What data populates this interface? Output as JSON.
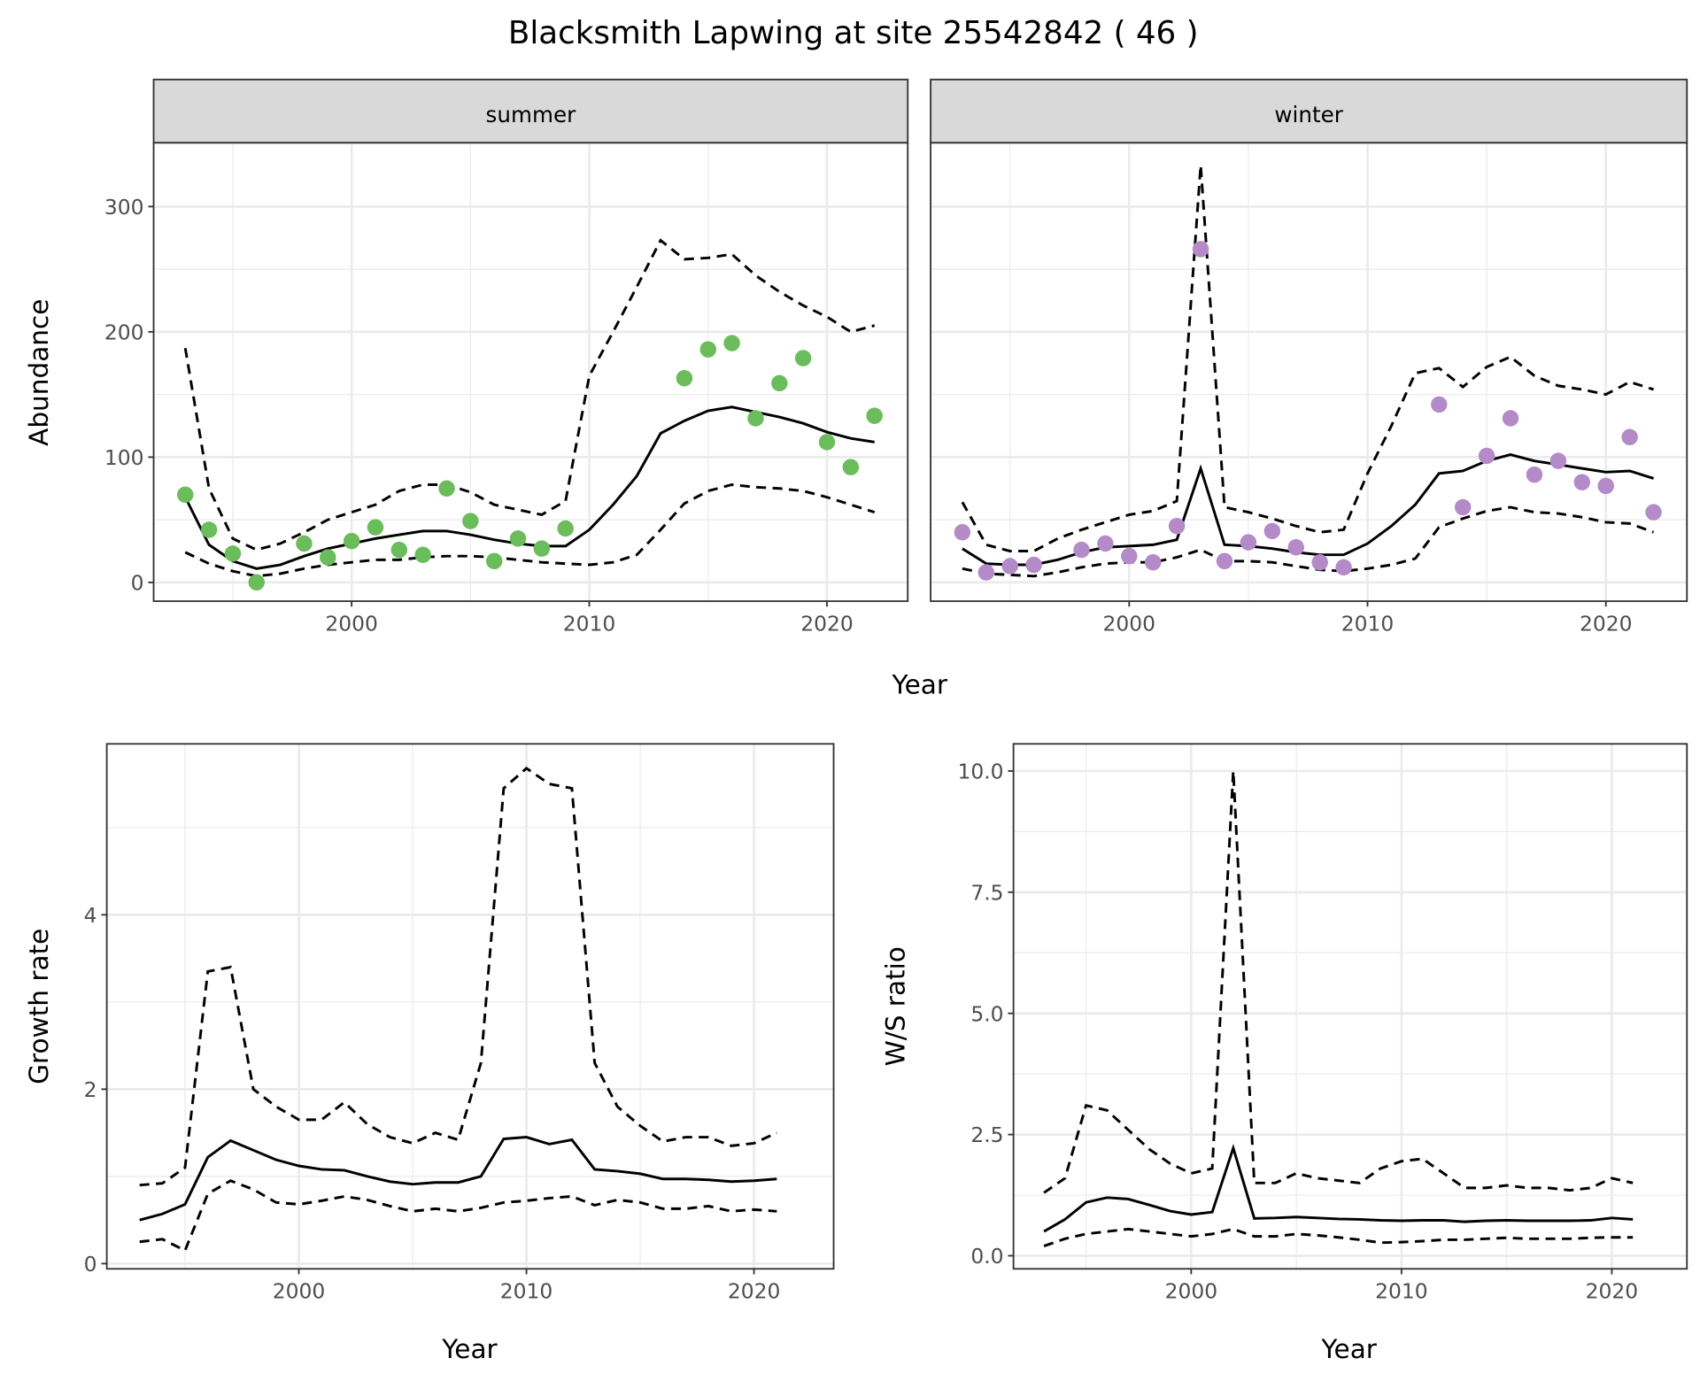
{
  "title": "Blacksmith Lapwing at site 25542842 ( 46 )",
  "colors": {
    "summer_points": "#6abd5a",
    "winter_points": "#b48ac8",
    "line": "#000000",
    "strip_bg": "#d9d9d9",
    "grid": "#ebebeb"
  },
  "chart_data": [
    {
      "type": "line",
      "id": "abundance",
      "facets": [
        "summer",
        "winter"
      ],
      "xlabel": "Year",
      "ylabel": "Abundance",
      "xlim": [
        1991.67,
        2023.4
      ],
      "ylim": [
        -15,
        351
      ],
      "xticks": [
        2000,
        2010,
        2020
      ],
      "xtick_labels": [
        "2000",
        "2010",
        "2020"
      ],
      "yticks": [
        0,
        100,
        200,
        300
      ],
      "ytick_labels": [
        "0",
        "100",
        "200",
        "300"
      ],
      "x": [
        1993,
        1994,
        1995,
        1996,
        1997,
        1998,
        1999,
        2000,
        2001,
        2002,
        2003,
        2004,
        2005,
        2006,
        2007,
        2008,
        2009,
        2010,
        2011,
        2012,
        2013,
        2014,
        2015,
        2016,
        2017,
        2018,
        2019,
        2020,
        2021,
        2022
      ],
      "summer": {
        "mean": [
          68,
          30,
          17,
          11,
          14,
          21,
          27,
          31,
          35,
          38,
          41,
          41,
          38,
          34,
          31,
          29,
          29,
          42,
          62,
          85,
          119,
          129,
          137,
          140,
          136,
          132,
          127,
          120,
          115,
          112
        ],
        "upper": [
          187,
          75,
          35,
          26,
          31,
          40,
          50,
          56,
          62,
          73,
          78,
          78,
          72,
          62,
          58,
          54,
          65,
          165,
          200,
          236,
          273,
          258,
          259,
          262,
          245,
          232,
          221,
          212,
          200,
          205
        ],
        "lower": [
          24,
          15,
          9,
          5,
          7,
          11,
          14,
          16,
          18,
          18,
          20,
          21,
          21,
          20,
          18,
          16,
          15,
          14,
          16,
          22,
          42,
          63,
          73,
          78,
          76,
          75,
          73,
          68,
          62,
          56
        ],
        "points_x": [
          1993,
          1994,
          1995,
          1996,
          1998,
          1999,
          2000,
          2001,
          2002,
          2003,
          2004,
          2005,
          2006,
          2007,
          2008,
          2009,
          2014,
          2015,
          2016,
          2017,
          2018,
          2019,
          2020,
          2021,
          2022
        ],
        "points_y": [
          70,
          42,
          23,
          0,
          31,
          20,
          33,
          44,
          26,
          22,
          75,
          49,
          17,
          35,
          27,
          43,
          163,
          186,
          191,
          131,
          159,
          179,
          112,
          92,
          133
        ]
      },
      "winter": {
        "mean": [
          27,
          15,
          14,
          14,
          18,
          24,
          28,
          29,
          30,
          34,
          91,
          30,
          29,
          27,
          24,
          22,
          22,
          31,
          45,
          62,
          87,
          89,
          97,
          102,
          97,
          94,
          91,
          88,
          89,
          83
        ],
        "upper": [
          64,
          30,
          25,
          25,
          35,
          42,
          48,
          54,
          57,
          65,
          333,
          60,
          56,
          51,
          45,
          40,
          42,
          87,
          125,
          167,
          171,
          156,
          172,
          180,
          165,
          157,
          154,
          150,
          160,
          154
        ],
        "lower": [
          11,
          7,
          6,
          5,
          8,
          12,
          15,
          16,
          16,
          20,
          26,
          17,
          17,
          16,
          13,
          10,
          9,
          11,
          14,
          19,
          44,
          51,
          57,
          60,
          56,
          55,
          52,
          48,
          47,
          40
        ],
        "points_x": [
          1993,
          1994,
          1995,
          1996,
          1998,
          1999,
          2000,
          2001,
          2002,
          2003,
          2004,
          2005,
          2006,
          2007,
          2008,
          2009,
          2013,
          2014,
          2015,
          2016,
          2017,
          2018,
          2019,
          2020,
          2021,
          2022
        ],
        "points_y": [
          40,
          8,
          13,
          14,
          26,
          31,
          21,
          16,
          45,
          266,
          17,
          32,
          41,
          28,
          16,
          12,
          142,
          60,
          101,
          131,
          86,
          97,
          80,
          77,
          116,
          56
        ]
      }
    },
    {
      "type": "line",
      "id": "growth",
      "xlabel": "Year",
      "ylabel": "Growth rate",
      "xlim": [
        1991.56,
        2023.5
      ],
      "ylim": [
        -0.06,
        5.96
      ],
      "xticks": [
        2000,
        2010,
        2020
      ],
      "xtick_labels": [
        "2000",
        "2010",
        "2020"
      ],
      "yticks": [
        0,
        2,
        4
      ],
      "ytick_labels": [
        "0",
        "2",
        "4"
      ],
      "x": [
        1993,
        1994,
        1995,
        1996,
        1997,
        1998,
        1999,
        2000,
        2001,
        2002,
        2003,
        2004,
        2005,
        2006,
        2007,
        2008,
        2009,
        2010,
        2011,
        2012,
        2013,
        2014,
        2015,
        2016,
        2017,
        2018,
        2019,
        2020,
        2021
      ],
      "mean": [
        0.5,
        0.57,
        0.68,
        1.22,
        1.41,
        1.3,
        1.19,
        1.12,
        1.08,
        1.07,
        1.0,
        0.94,
        0.91,
        0.93,
        0.93,
        1.0,
        1.43,
        1.45,
        1.37,
        1.42,
        1.08,
        1.06,
        1.03,
        0.97,
        0.97,
        0.96,
        0.94,
        0.95,
        0.97
      ],
      "upper": [
        0.9,
        0.92,
        1.1,
        3.35,
        3.4,
        2.0,
        1.8,
        1.65,
        1.65,
        1.85,
        1.6,
        1.45,
        1.38,
        1.5,
        1.42,
        2.3,
        5.45,
        5.68,
        5.5,
        5.45,
        2.3,
        1.8,
        1.58,
        1.4,
        1.45,
        1.45,
        1.35,
        1.38,
        1.5
      ],
      "lower": [
        0.25,
        0.28,
        0.15,
        0.8,
        0.95,
        0.85,
        0.7,
        0.68,
        0.72,
        0.77,
        0.73,
        0.66,
        0.6,
        0.63,
        0.6,
        0.64,
        0.7,
        0.72,
        0.75,
        0.77,
        0.67,
        0.73,
        0.7,
        0.63,
        0.63,
        0.66,
        0.6,
        0.62,
        0.6
      ]
    },
    {
      "type": "line",
      "id": "ratio",
      "xlabel": "Year",
      "ylabel": "W/S ratio",
      "xlim": [
        1991.55,
        2023.57
      ],
      "ylim": [
        -0.27,
        10.56
      ],
      "xticks": [
        2000,
        2010,
        2020
      ],
      "xtick_labels": [
        "2000",
        "2010",
        "2020"
      ],
      "yticks": [
        0,
        2.5,
        5,
        7.5,
        10
      ],
      "ytick_labels": [
        "0.0",
        "2.5",
        "5.0",
        "7.5",
        "10.0"
      ],
      "x": [
        1993,
        1994,
        1995,
        1996,
        1997,
        1998,
        1999,
        2000,
        2001,
        2002,
        2003,
        2004,
        2005,
        2006,
        2007,
        2008,
        2009,
        2010,
        2011,
        2012,
        2013,
        2014,
        2015,
        2016,
        2017,
        2018,
        2019,
        2020,
        2021
      ],
      "mean": [
        0.5,
        0.75,
        1.1,
        1.2,
        1.17,
        1.05,
        0.92,
        0.85,
        0.9,
        2.22,
        0.77,
        0.78,
        0.8,
        0.78,
        0.76,
        0.75,
        0.73,
        0.72,
        0.73,
        0.73,
        0.7,
        0.72,
        0.73,
        0.72,
        0.72,
        0.72,
        0.73,
        0.78,
        0.75
      ],
      "upper": [
        1.3,
        1.6,
        3.1,
        3.0,
        2.6,
        2.2,
        1.9,
        1.7,
        1.8,
        10.0,
        1.5,
        1.5,
        1.7,
        1.6,
        1.55,
        1.5,
        1.8,
        1.95,
        2.0,
        1.7,
        1.4,
        1.4,
        1.45,
        1.4,
        1.4,
        1.35,
        1.4,
        1.6,
        1.5
      ],
      "lower": [
        0.2,
        0.35,
        0.45,
        0.5,
        0.55,
        0.5,
        0.45,
        0.4,
        0.45,
        0.55,
        0.4,
        0.4,
        0.45,
        0.42,
        0.38,
        0.33,
        0.27,
        0.28,
        0.3,
        0.33,
        0.33,
        0.35,
        0.37,
        0.35,
        0.35,
        0.35,
        0.37,
        0.38,
        0.38
      ]
    }
  ]
}
